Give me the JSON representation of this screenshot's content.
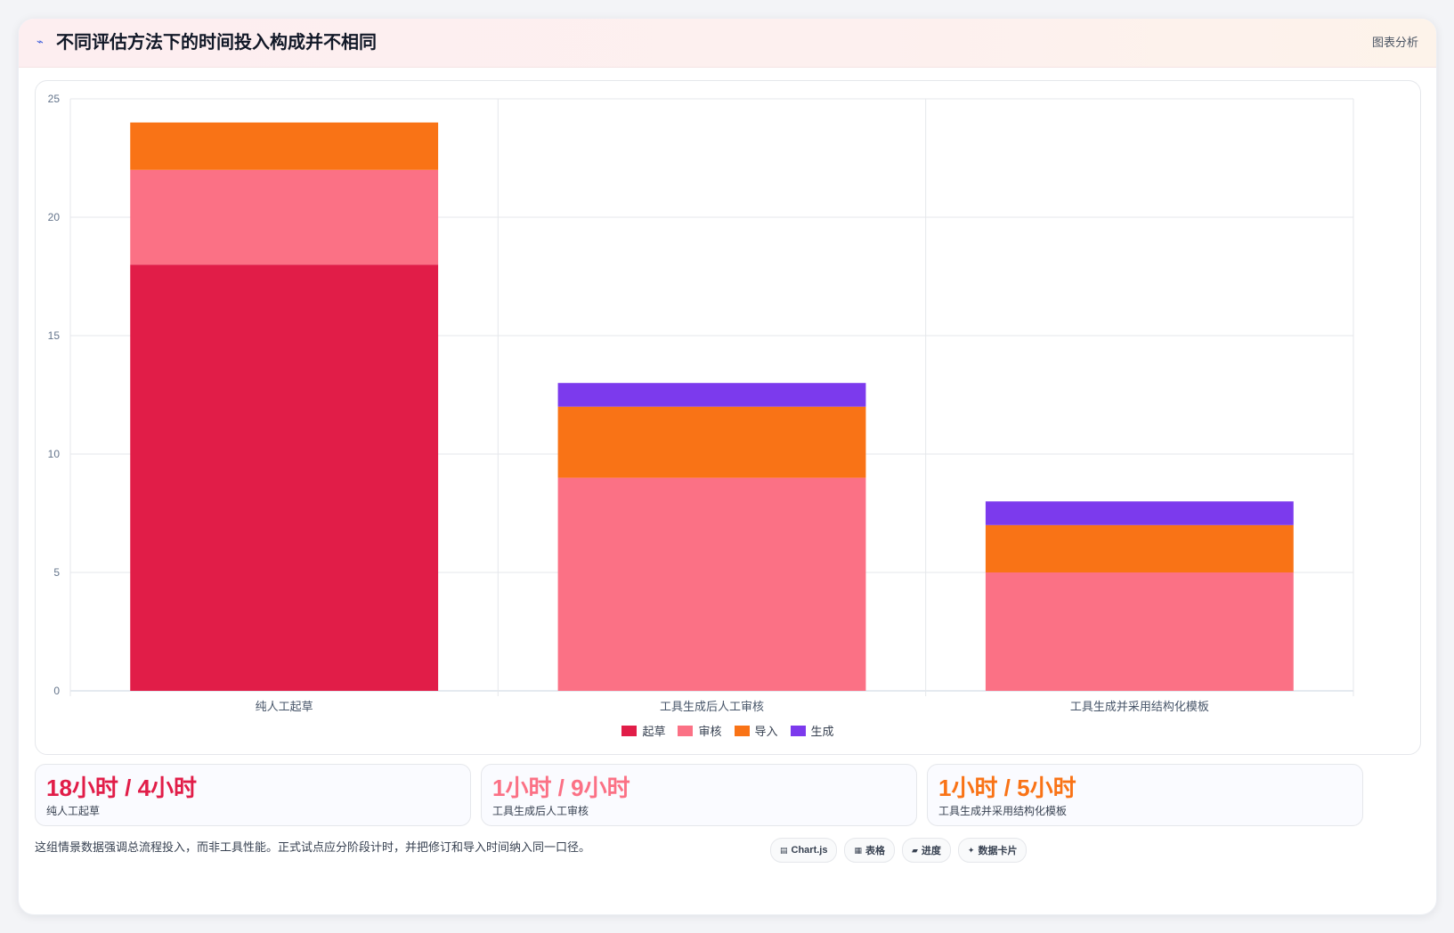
{
  "header": {
    "title": "不同评估方法下的时间投入构成并不相同",
    "tag": "图表分析"
  },
  "chart_data": {
    "type": "bar",
    "stacked": true,
    "categories": [
      "纯人工起草",
      "工具生成后人工审核",
      "工具生成并采用结构化模板"
    ],
    "series": [
      {
        "name": "起草",
        "color": "#e11d48",
        "values": [
          18,
          0,
          0
        ]
      },
      {
        "name": "审核",
        "color": "#fb7185",
        "values": [
          4,
          9,
          5
        ]
      },
      {
        "name": "导入",
        "color": "#f97316",
        "values": [
          2,
          3,
          2
        ]
      },
      {
        "name": "生成",
        "color": "#7c3aed",
        "values": [
          0,
          1,
          1
        ]
      }
    ],
    "ylim": [
      0,
      25
    ],
    "yticks": [
      0,
      5,
      10,
      15,
      20,
      25
    ],
    "grid": true,
    "legend": "bottom"
  },
  "stats": [
    {
      "value": "18小时 / 4小时",
      "label": "纯人工起草",
      "color": "#e11d48"
    },
    {
      "value": "1小时 / 9小时",
      "label": "工具生成后人工审核",
      "color": "#fb7185"
    },
    {
      "value": "1小时 / 5小时",
      "label": "工具生成并采用结构化模板",
      "color": "#f97316"
    }
  ],
  "note": "这组情景数据强调总流程投入，而非工具性能。正式试点应分阶段计时，并把修订和导入时间纳入同一口径。",
  "pills": [
    {
      "icon": "chart-icon",
      "label": "Chart.js"
    },
    {
      "icon": "table-icon",
      "label": "表格"
    },
    {
      "icon": "progress-icon",
      "label": "进度"
    },
    {
      "icon": "sparkle-icon",
      "label": "数据卡片"
    }
  ]
}
